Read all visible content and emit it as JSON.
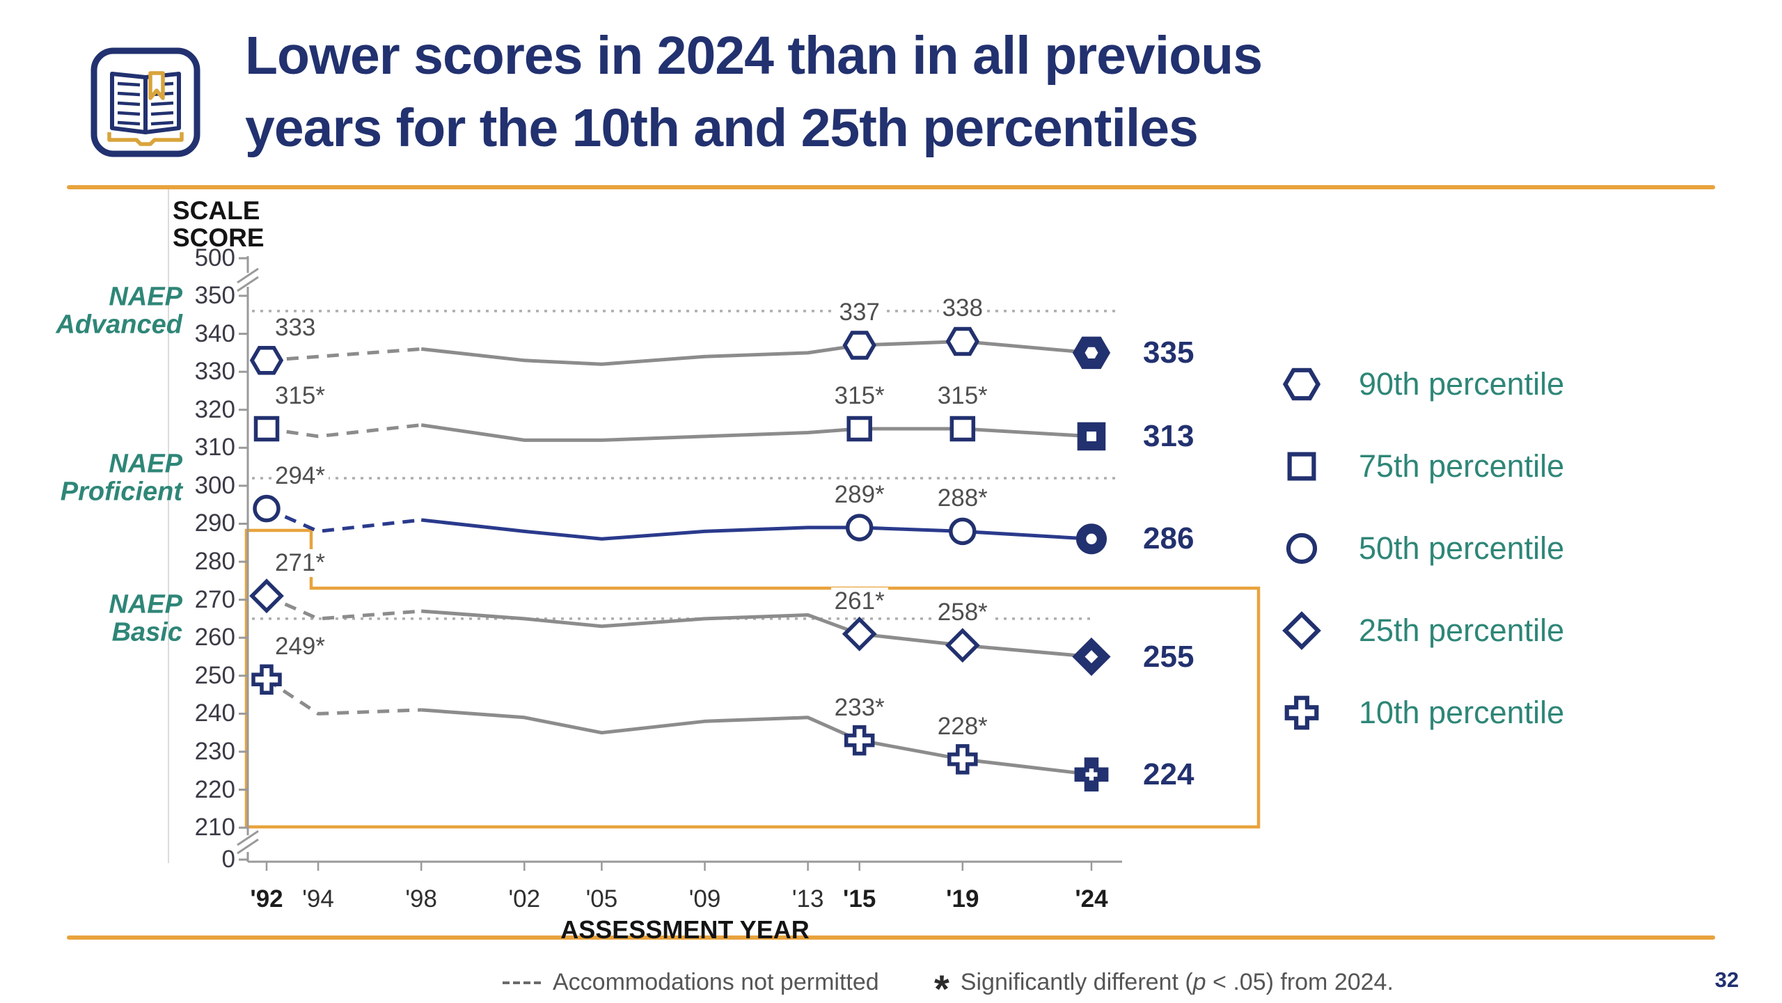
{
  "page": {
    "number": "32"
  },
  "colors": {
    "navy": "#22316F",
    "line_blue": "#2A3A8C",
    "teal": "#2E8677",
    "orange": "#E8A33D",
    "gray_line": "#8C8C8C",
    "dotted_gray": "#ADADAD",
    "axis_gray": "#9A9A9A"
  },
  "header": {
    "icon": "open-book-icon",
    "title_line1": "Lower scores in 2024 than in all previous",
    "title_line2": "years for the 10th and 25th percentiles"
  },
  "chart": {
    "y_axis_title_line1": "SCALE",
    "y_axis_title_line2": "SCORE",
    "x_axis_title": "ASSESSMENT YEAR",
    "y_ticks": [
      "500",
      "350",
      "340",
      "330",
      "320",
      "310",
      "300",
      "290",
      "280",
      "270",
      "260",
      "250",
      "240",
      "230",
      "220",
      "210",
      "0"
    ],
    "levels": [
      {
        "line1": "NAEP",
        "line2": "Advanced",
        "score": 346
      },
      {
        "line1": "NAEP",
        "line2": "Proficient",
        "score": 302
      },
      {
        "line1": "NAEP",
        "line2": "Basic",
        "score": 265
      }
    ],
    "x_ticks": [
      {
        "label": "'92",
        "year": 1992,
        "bold": true
      },
      {
        "label": "'94",
        "year": 1994,
        "bold": false
      },
      {
        "label": "'98",
        "year": 1998,
        "bold": false
      },
      {
        "label": "'02",
        "year": 2002,
        "bold": false
      },
      {
        "label": "'05",
        "year": 2005,
        "bold": false
      },
      {
        "label": "'09",
        "year": 2009,
        "bold": false
      },
      {
        "label": "'13",
        "year": 2013,
        "bold": false
      },
      {
        "label": "'15",
        "year": 2015,
        "bold": true
      },
      {
        "label": "'19",
        "year": 2019,
        "bold": true
      },
      {
        "label": "'24",
        "year": 2024,
        "bold": true
      }
    ]
  },
  "chart_data": {
    "type": "line",
    "title": "Lower scores in 2024 than in all previous years for the 10th and 25th percentiles",
    "xlabel": "ASSESSMENT YEAR",
    "ylabel": "SCALE SCORE",
    "x": [
      1992,
      1994,
      1998,
      2002,
      2005,
      2009,
      2013,
      2015,
      2019,
      2024
    ],
    "ylim_main": [
      210,
      350
    ],
    "y_axis_break": true,
    "grid": "achievement-level dotted lines only",
    "legend_position": "right",
    "dashed_until_year": 1998,
    "marker_years": [
      1992,
      2015,
      2019,
      2024
    ],
    "filled_marker_year": 2024,
    "series": [
      {
        "name": "90th percentile",
        "marker": "hexagon",
        "color": "#8C8C8C",
        "values": [
          333,
          334,
          336,
          333,
          332,
          334,
          335,
          337,
          338,
          335
        ],
        "point_labels": [
          {
            "year": 1992,
            "text": "333"
          },
          {
            "year": 2015,
            "text": "337"
          },
          {
            "year": 2019,
            "text": "338"
          }
        ],
        "end_label": "335"
      },
      {
        "name": "75th percentile",
        "marker": "square",
        "color": "#8C8C8C",
        "values": [
          315,
          313,
          316,
          312,
          312,
          313,
          314,
          315,
          315,
          313
        ],
        "point_labels": [
          {
            "year": 1992,
            "text": "315*"
          },
          {
            "year": 2015,
            "text": "315*"
          },
          {
            "year": 2019,
            "text": "315*"
          }
        ],
        "end_label": "313"
      },
      {
        "name": "50th percentile",
        "marker": "circle",
        "color": "#2A3A8C",
        "values": [
          294,
          288,
          291,
          288,
          286,
          288,
          289,
          289,
          288,
          286
        ],
        "point_labels": [
          {
            "year": 1992,
            "text": "294*"
          },
          {
            "year": 2015,
            "text": "289*"
          },
          {
            "year": 2019,
            "text": "288*"
          }
        ],
        "end_label": "286"
      },
      {
        "name": "25th percentile",
        "marker": "diamond",
        "color": "#8C8C8C",
        "values": [
          271,
          265,
          267,
          265,
          263,
          265,
          266,
          261,
          258,
          255
        ],
        "point_labels": [
          {
            "year": 1992,
            "text": "271*"
          },
          {
            "year": 2015,
            "text": "261*"
          },
          {
            "year": 2019,
            "text": "258*"
          }
        ],
        "end_label": "255"
      },
      {
        "name": "10th percentile",
        "marker": "cross",
        "color": "#8C8C8C",
        "values": [
          249,
          240,
          241,
          239,
          235,
          238,
          239,
          233,
          228,
          224
        ],
        "point_labels": [
          {
            "year": 1992,
            "text": "249*"
          },
          {
            "year": 2015,
            "text": "233*"
          },
          {
            "year": 2019,
            "text": "228*"
          }
        ],
        "end_label": "224"
      }
    ],
    "highlight_box": "orange outline around 25th and 10th percentile series"
  },
  "legend": [
    {
      "marker": "hexagon",
      "label": "90th percentile"
    },
    {
      "marker": "square",
      "label": "75th percentile"
    },
    {
      "marker": "circle",
      "label": "50th percentile"
    },
    {
      "marker": "diamond",
      "label": "25th percentile"
    },
    {
      "marker": "cross",
      "label": "10th percentile"
    }
  ],
  "footer": {
    "dash_note": "Accommodations not permitted",
    "asterisk": "*",
    "sig_prefix": "Significantly different (",
    "sig_p": "p",
    "sig_suffix": " < .05) from 2024."
  }
}
